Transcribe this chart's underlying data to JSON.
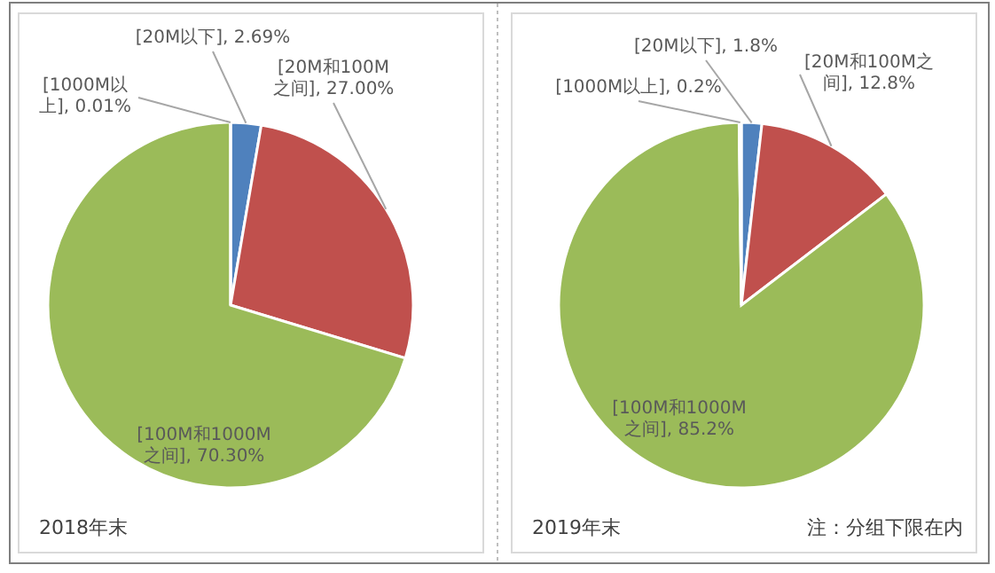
{
  "chart_data": [
    {
      "type": "pie",
      "title": "2018年末",
      "categories": [
        "[20M以下]",
        "[20M和100M之间]",
        "[100M和1000M之间]",
        "[1000M以上]"
      ],
      "values": [
        2.69,
        27.0,
        70.3,
        0.01
      ],
      "value_labels": [
        "2.69%",
        "27.00%",
        "70.30%",
        "0.01%"
      ],
      "colors": [
        "#4f81bd",
        "#c0504d",
        "#9bbb59",
        "#8064a2"
      ],
      "legend": false
    },
    {
      "type": "pie",
      "title": "2019年末",
      "categories": [
        "[20M以下]",
        "[20M和100M之间]",
        "[100M和1000M之间]",
        "[1000M以上]"
      ],
      "values": [
        1.8,
        12.8,
        85.2,
        0.2
      ],
      "value_labels": [
        "1.8%",
        "12.8%",
        "85.2%",
        "0.2%"
      ],
      "colors": [
        "#4f81bd",
        "#c0504d",
        "#9bbb59",
        "#8064a2"
      ],
      "legend": false,
      "annotations": [
        "注：分组下限在内"
      ]
    }
  ]
}
